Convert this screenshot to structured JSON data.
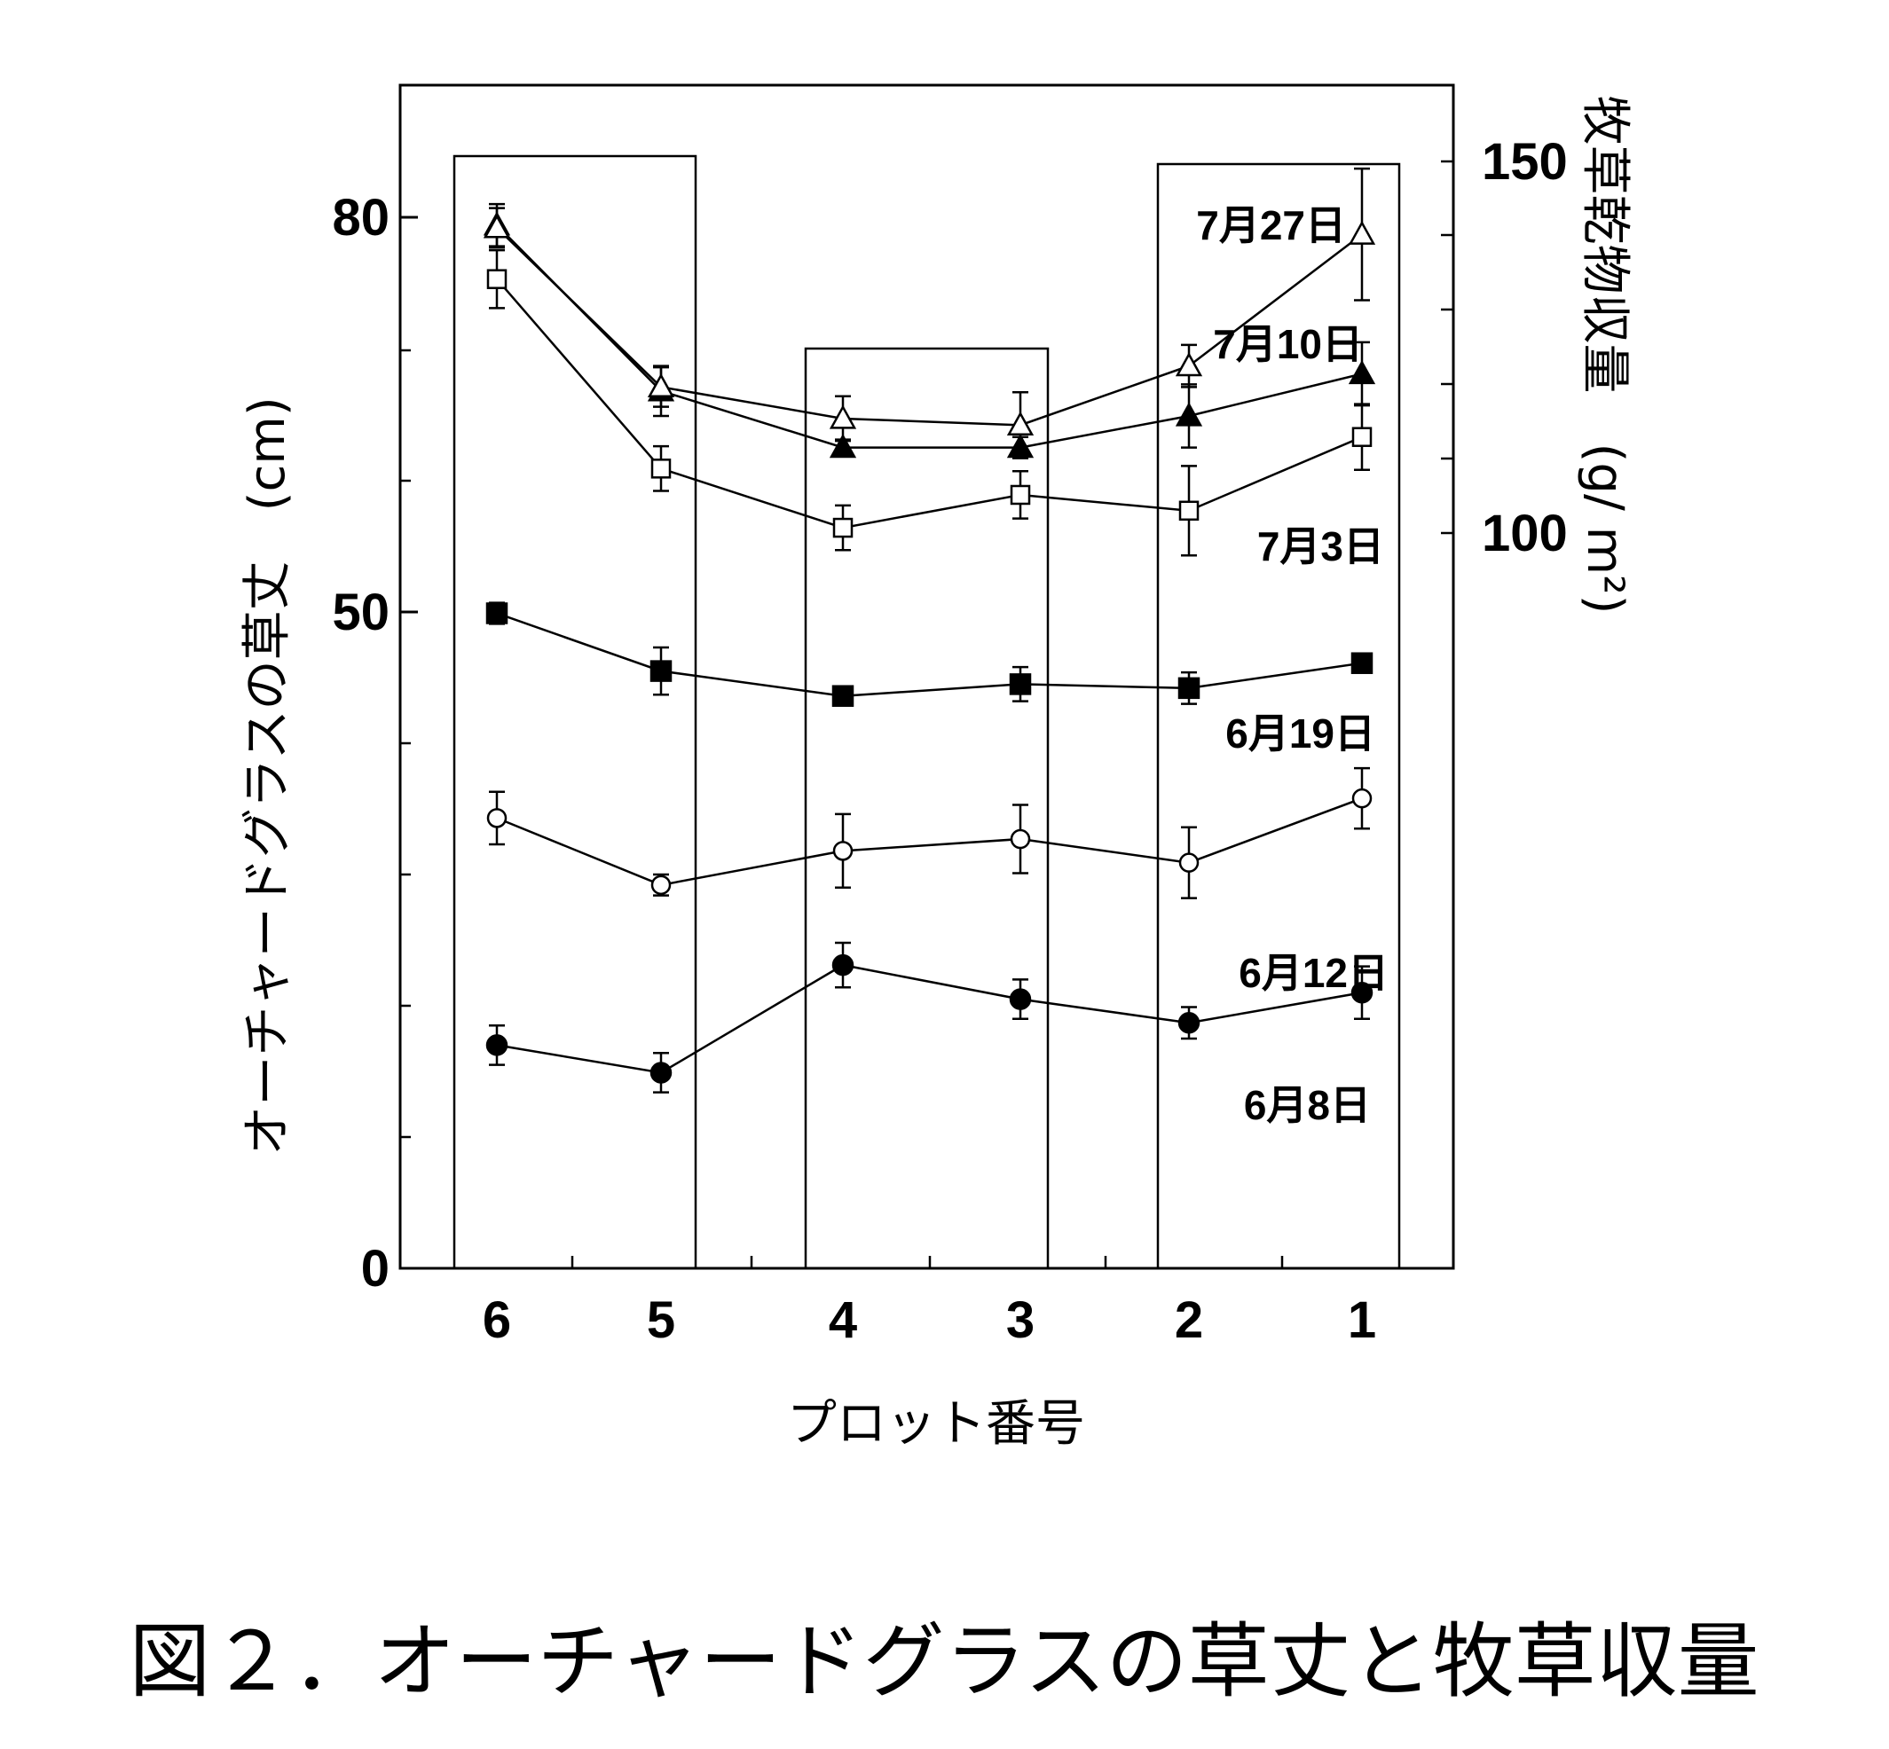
{
  "chart_data": {
    "type": "line",
    "caption": "図２．オーチャードグラスの草丈と牧草収量",
    "xlabel": "プロット番号",
    "ylabel": "オーチャードグラスの草丈　(cm)",
    "y2label": "牧草乾物収量　(g/ m²)",
    "categories": [
      "6",
      "5",
      "4",
      "3",
      "2",
      "1"
    ],
    "y_axis": {
      "tick_values": [
        0,
        50,
        80
      ],
      "tick_labels": [
        "0",
        "50",
        "80"
      ],
      "note": "axis break: 0 to 50 segment compressed"
    },
    "y2_axis": {
      "tick_values": [
        100,
        150
      ],
      "tick_labels": [
        "100",
        "150"
      ]
    },
    "series": [
      {
        "name": "6月8日",
        "marker": "filled-circle",
        "values": [
          17,
          14.9,
          23.1,
          20.5,
          18.7,
          21.0
        ],
        "errors": [
          1.5,
          1.5,
          1.7,
          1.5,
          1.2,
          2.0
        ]
      },
      {
        "name": "6月12日",
        "marker": "open-circle",
        "values": [
          34.3,
          29.2,
          31.8,
          32.7,
          30.9,
          35.8
        ],
        "errors": [
          2.0,
          0.8,
          2.8,
          2.6,
          2.7,
          2.3
        ]
      },
      {
        "name": "6月19日",
        "marker": "filled-square",
        "values": [
          49.9,
          45.5,
          43.6,
          44.5,
          44.2,
          46.1
        ],
        "errors": [
          0.8,
          1.8,
          0.6,
          1.3,
          1.2,
          0.6
        ]
      },
      {
        "name": "7月3日",
        "marker": "open-square",
        "values": [
          75.3,
          60.9,
          56.4,
          58.9,
          57.7,
          63.3
        ],
        "errors": [
          2.2,
          1.7,
          1.7,
          1.8,
          3.4,
          2.5
        ]
      },
      {
        "name": "7月10日",
        "marker": "filled-triangle",
        "values": [
          79.4,
          66.8,
          62.5,
          62.5,
          64.9,
          68.1
        ],
        "errors": [
          1.6,
          1.9,
          0.6,
          0.8,
          2.4,
          2.4
        ]
      },
      {
        "name": "7月27日",
        "marker": "open-triangle",
        "values": [
          79.2,
          67.1,
          64.7,
          64.2,
          68.7,
          78.7
        ],
        "errors": [
          1.5,
          1.5,
          1.7,
          2.5,
          1.6,
          5.0
        ]
      }
    ]
  }
}
